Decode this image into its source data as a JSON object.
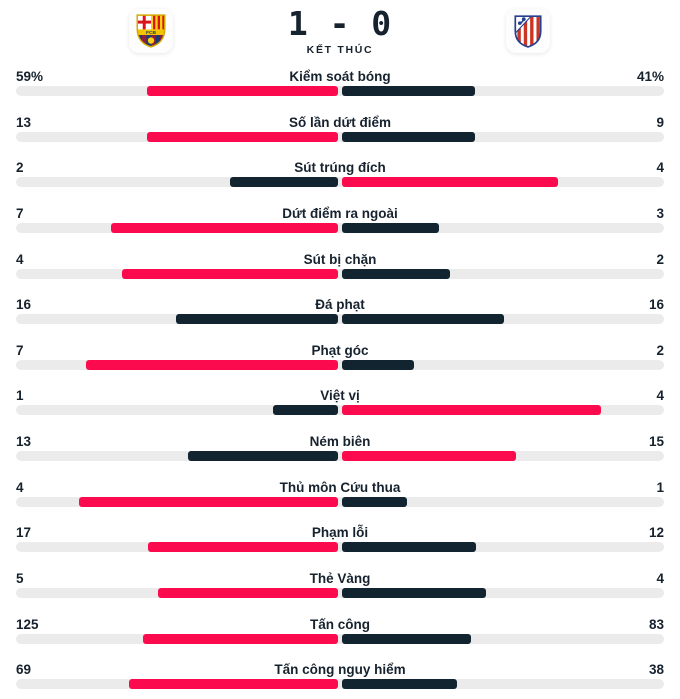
{
  "header": {
    "score": "1 - 0",
    "home_score": "1",
    "away_score": "0",
    "status": "KẾT THÚC",
    "home_team_icon": "barcelona-crest",
    "away_team_icon": "atletico-madrid-crest",
    "home_crest_monogram": "FCB"
  },
  "colors": {
    "highlight_pink": "#fb0b4d",
    "dark_navy": "#112430",
    "track_gray": "#ebebeb",
    "text": "#16222e"
  },
  "rows": [
    {
      "label": "Kiểm soát bóng",
      "home_display": "59%",
      "away_display": "41%",
      "home": 59,
      "away": 41
    },
    {
      "label": "Số lần dứt điểm",
      "home_display": "13",
      "away_display": "9",
      "home": 13,
      "away": 9
    },
    {
      "label": "Sút trúng đích",
      "home_display": "2",
      "away_display": "4",
      "home": 2,
      "away": 4
    },
    {
      "label": "Dứt điểm ra ngoài",
      "home_display": "7",
      "away_display": "3",
      "home": 7,
      "away": 3
    },
    {
      "label": "Sút bị chặn",
      "home_display": "4",
      "away_display": "2",
      "home": 4,
      "away": 2
    },
    {
      "label": "Đá phạt",
      "home_display": "16",
      "away_display": "16",
      "home": 16,
      "away": 16
    },
    {
      "label": "Phạt góc",
      "home_display": "7",
      "away_display": "2",
      "home": 7,
      "away": 2
    },
    {
      "label": "Việt vị",
      "home_display": "1",
      "away_display": "4",
      "home": 1,
      "away": 4
    },
    {
      "label": "Ném biên",
      "home_display": "13",
      "away_display": "15",
      "home": 13,
      "away": 15
    },
    {
      "label": "Thủ môn Cứu thua",
      "home_display": "4",
      "away_display": "1",
      "home": 4,
      "away": 1
    },
    {
      "label": "Phạm lỗi",
      "home_display": "17",
      "away_display": "12",
      "home": 17,
      "away": 12
    },
    {
      "label": "Thẻ Vàng",
      "home_display": "5",
      "away_display": "4",
      "home": 5,
      "away": 4
    },
    {
      "label": "Tấn công",
      "home_display": "125",
      "away_display": "83",
      "home": 125,
      "away": 83
    },
    {
      "label": "Tấn công nguy hiểm",
      "home_display": "69",
      "away_display": "38",
      "home": 69,
      "away": 38
    }
  ],
  "chart_data": {
    "type": "bar",
    "title": "1 - 0",
    "subtitle": "KẾT THÚC",
    "categories": [
      "Kiểm soát bóng",
      "Số lần dứt điểm",
      "Sút trúng đích",
      "Dứt điểm ra ngoài",
      "Sút bị chặn",
      "Đá phạt",
      "Phạt góc",
      "Việt vị",
      "Ném biên",
      "Thủ môn Cứu thua",
      "Phạm lỗi",
      "Thẻ Vàng",
      "Tấn công",
      "Tấn công nguy hiểm"
    ],
    "series": [
      {
        "name": "Barcelona (home, left)",
        "values": [
          59,
          13,
          2,
          7,
          4,
          16,
          7,
          1,
          13,
          4,
          17,
          5,
          125,
          69
        ]
      },
      {
        "name": "Atlético Madrid (away, right)",
        "values": [
          41,
          9,
          4,
          3,
          2,
          16,
          2,
          4,
          15,
          1,
          12,
          4,
          83,
          38
        ]
      }
    ],
    "value_suffixes": [
      "%",
      "",
      "",
      "",
      "",
      "",
      "",
      "",
      "",
      "",
      "",
      "",
      "",
      ""
    ],
    "layout": "paired horizontal bars growing outward from center; bar length = value / (home+away) of the half-track; larger value colored pink #fb0b4d, smaller dark navy #112430, tie = both navy; gray track full width",
    "legend_position": "none",
    "grid": false
  }
}
